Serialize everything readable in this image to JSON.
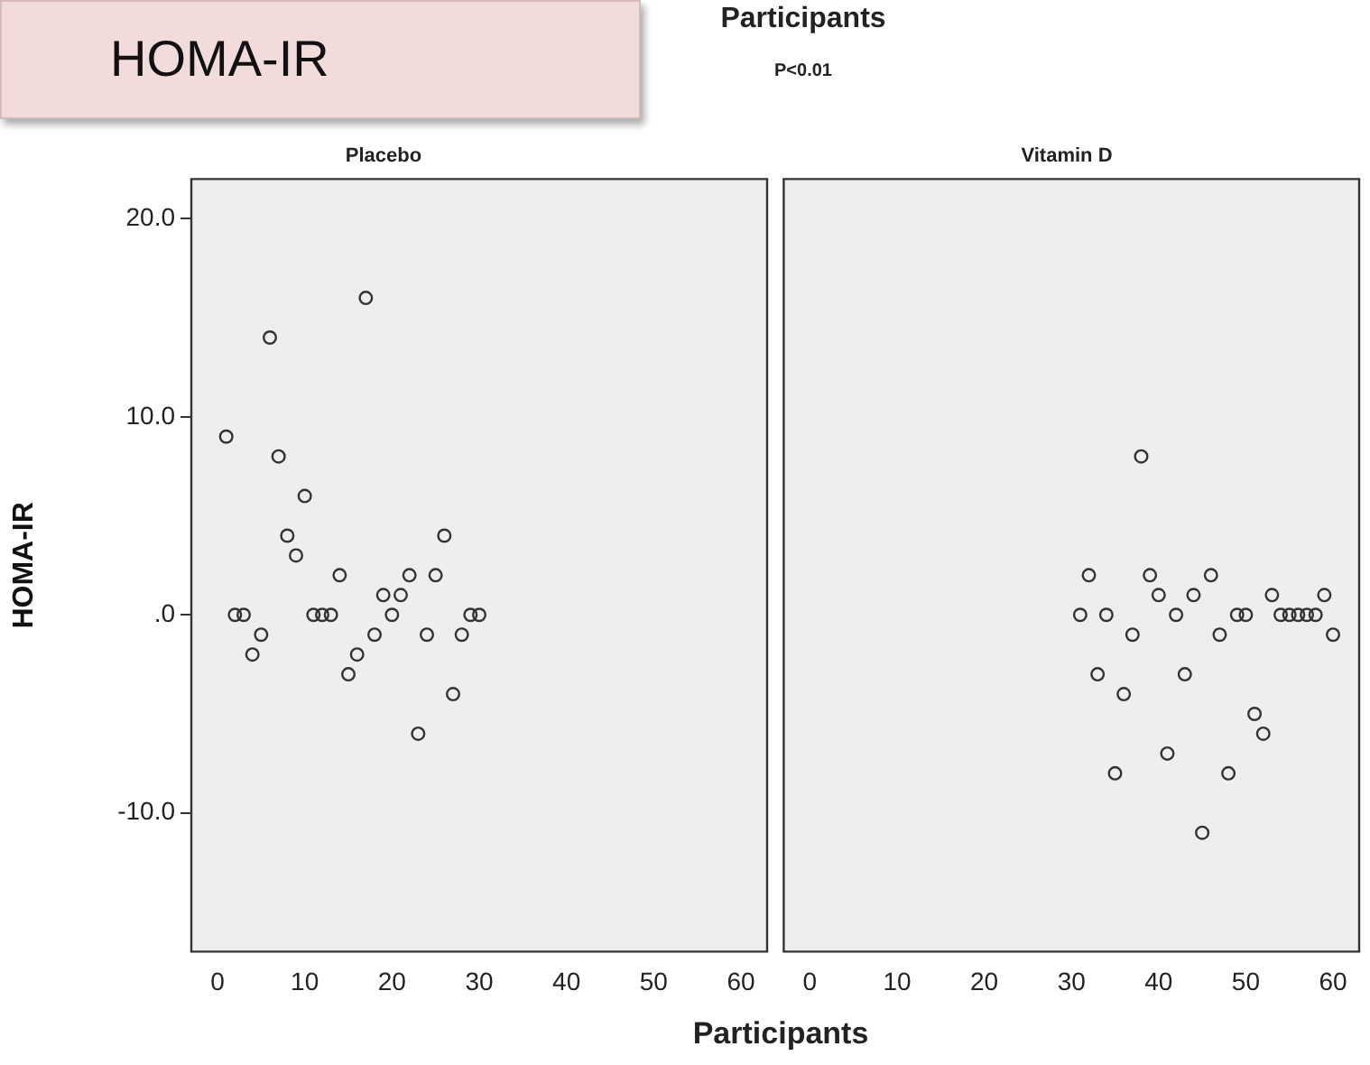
{
  "chart_data": [
    {
      "type": "scatter",
      "title": "Placebo",
      "ylabel": "HOMA-IR",
      "xlabel": "Participants",
      "annotations": [
        "HOMA-IR",
        "Participants",
        "P<0.01"
      ],
      "marker": "circle",
      "series": [
        {
          "color": "#333333",
          "x": [
            1,
            2,
            3,
            4,
            5,
            6,
            7,
            8,
            9,
            10,
            11,
            12,
            13,
            14,
            15,
            16,
            17,
            18,
            19,
            20,
            21,
            22,
            23,
            24,
            25,
            26,
            27,
            28,
            29,
            30
          ],
          "values": [
            9,
            0,
            0,
            -2,
            -1,
            14,
            8,
            4,
            3,
            6,
            0,
            0,
            0,
            2,
            -3,
            -2,
            16,
            -1,
            1,
            0,
            1,
            2,
            -6,
            -1,
            2,
            4,
            -4,
            -1,
            0,
            0
          ]
        }
      ],
      "xlim": [
        -3,
        63
      ],
      "xticks": [
        0,
        10,
        20,
        30,
        40,
        50,
        60
      ],
      "ylim": [
        -17,
        22
      ],
      "yticks": [
        {
          "value": 20,
          "label": "20.0"
        },
        {
          "value": 10,
          "label": "10.0"
        },
        {
          "value": 0,
          "label": ".0"
        },
        {
          "value": -10,
          "label": "-10.0"
        }
      ]
    },
    {
      "type": "scatter",
      "title": "Vitamin D",
      "marker": "circle",
      "tick_labels": "x",
      "series": [
        {
          "color": "#333333",
          "x": [
            31,
            32,
            33,
            34,
            35,
            36,
            37,
            38,
            39,
            40,
            41,
            42,
            43,
            44,
            45,
            46,
            47,
            48,
            49,
            50,
            51,
            52,
            53,
            54,
            55,
            56,
            57,
            58,
            59,
            60
          ],
          "values": [
            0,
            2,
            -3,
            0,
            -8,
            -4,
            -1,
            8,
            2,
            1,
            -7,
            0,
            -3,
            1,
            -11,
            2,
            -1,
            -8,
            0,
            0,
            -5,
            -6,
            1,
            0,
            0,
            0,
            0,
            0,
            1,
            -1
          ]
        }
      ],
      "xlim": [
        -3,
        63
      ],
      "xticks": [
        0,
        10,
        20,
        30,
        40,
        50,
        60
      ],
      "ylim": [
        -17,
        22
      ]
    }
  ]
}
